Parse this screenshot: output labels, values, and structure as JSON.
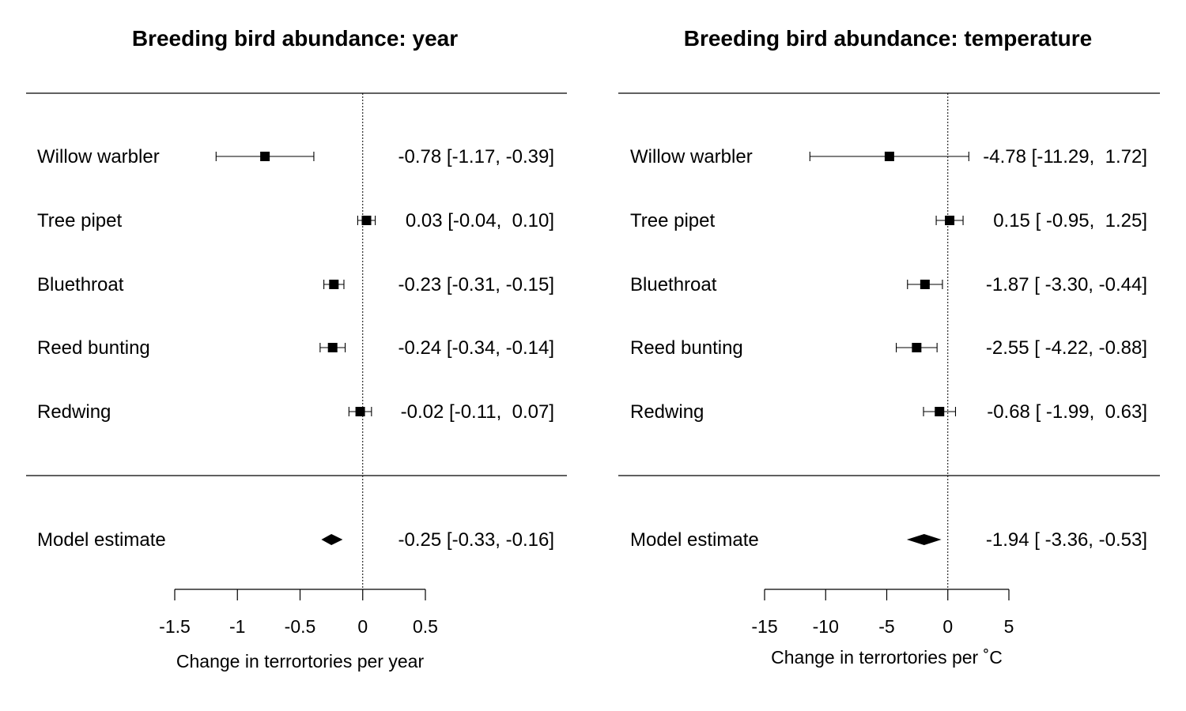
{
  "chart_data": [
    {
      "type": "forest",
      "title": "Breeding bird abundance: year",
      "xlabel": "Change in terrortories per year",
      "xlim": [
        -1.5,
        0.5
      ],
      "xticks": [
        -1.5,
        -1,
        -0.5,
        0,
        0.5
      ],
      "xtick_labels": [
        "-1.5",
        "-1",
        "-0.5",
        "0",
        "0.5"
      ],
      "reference_line": 0,
      "studies": [
        {
          "name": "Willow warbler",
          "estimate": -0.78,
          "ci_low": -1.17,
          "ci_high": -0.39,
          "label": "-0.78 [-1.17, -0.39]"
        },
        {
          "name": "Tree pipet",
          "estimate": 0.03,
          "ci_low": -0.04,
          "ci_high": 0.1,
          "label": "0.03 [-0.04,  0.10]"
        },
        {
          "name": "Bluethroat",
          "estimate": -0.23,
          "ci_low": -0.31,
          "ci_high": -0.15,
          "label": "-0.23 [-0.31, -0.15]"
        },
        {
          "name": "Reed bunting",
          "estimate": -0.24,
          "ci_low": -0.34,
          "ci_high": -0.14,
          "label": "-0.24 [-0.34, -0.14]"
        },
        {
          "name": "Redwing",
          "estimate": -0.02,
          "ci_low": -0.11,
          "ci_high": 0.07,
          "label": "-0.02 [-0.11,  0.07]"
        }
      ],
      "summary": {
        "name": "Model estimate",
        "estimate": -0.25,
        "ci_low": -0.33,
        "ci_high": -0.16,
        "label": "-0.25 [-0.33, -0.16]"
      }
    },
    {
      "type": "forest",
      "title": "Breeding bird abundance: temperature",
      "xlabel": "Change in terrortories per ˚C",
      "xlim": [
        -15,
        5
      ],
      "xticks": [
        -15,
        -10,
        -5,
        0,
        5
      ],
      "xtick_labels": [
        "-15",
        "-10",
        "-5",
        "0",
        "5"
      ],
      "reference_line": 0,
      "studies": [
        {
          "name": "Willow warbler",
          "estimate": -4.78,
          "ci_low": -11.29,
          "ci_high": 1.72,
          "label": "-4.78 [-11.29,  1.72]"
        },
        {
          "name": "Tree pipet",
          "estimate": 0.15,
          "ci_low": -0.95,
          "ci_high": 1.25,
          "label": "0.15 [ -0.95,  1.25]"
        },
        {
          "name": "Bluethroat",
          "estimate": -1.87,
          "ci_low": -3.3,
          "ci_high": -0.44,
          "label": "-1.87 [ -3.30, -0.44]"
        },
        {
          "name": "Reed bunting",
          "estimate": -2.55,
          "ci_low": -4.22,
          "ci_high": -0.88,
          "label": "-2.55 [ -4.22, -0.88]"
        },
        {
          "name": "Redwing",
          "estimate": -0.68,
          "ci_low": -1.99,
          "ci_high": 0.63,
          "label": "-0.68 [ -1.99,  0.63]"
        }
      ],
      "summary": {
        "name": "Model estimate",
        "estimate": -1.94,
        "ci_low": -3.36,
        "ci_high": -0.53,
        "label": "-1.94 [ -3.36, -0.53]"
      }
    }
  ]
}
